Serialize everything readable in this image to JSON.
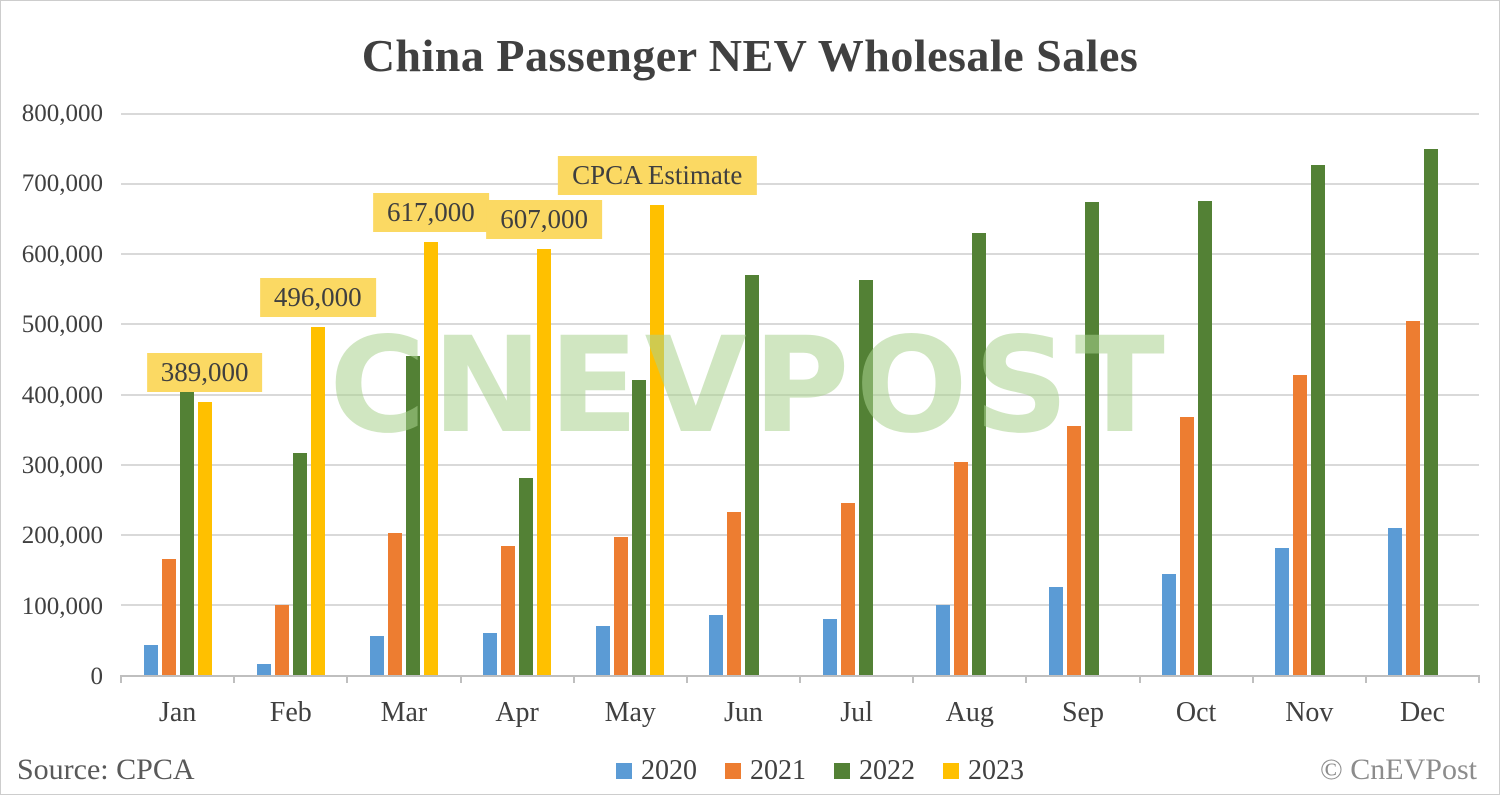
{
  "title": "China Passenger NEV Wholesale Sales",
  "source": "Source: CPCA",
  "copyright": "© CnEVPost",
  "watermark": "CNEVPOST",
  "colors": {
    "background": "#FFFFFF",
    "title_text": "#404040",
    "axis_text": "#404040",
    "gridline": "#D9D9D9",
    "axis_line": "#BFBFBF",
    "annotation_bg": "#FBD963",
    "annotation_text": "#3F3F3F",
    "watermark_color": "#A9D18E8C",
    "source_text": "#595959",
    "copyright_text": "#8C8C8C"
  },
  "chart_data": {
    "type": "bar",
    "title": "China Passenger NEV Wholesale Sales",
    "xlabel": "",
    "ylabel": "",
    "ylim": [
      0,
      800000
    ],
    "ytick_step": 100000,
    "grid": true,
    "legend_position": "bottom",
    "categories": [
      "Jan",
      "Feb",
      "Mar",
      "Apr",
      "May",
      "Jun",
      "Jul",
      "Aug",
      "Sep",
      "Oct",
      "Nov",
      "Dec"
    ],
    "series": [
      {
        "name": "2020",
        "color": "#5B9BD5",
        "values": [
          43000,
          15000,
          56000,
          60000,
          70000,
          85000,
          80000,
          100000,
          125000,
          144000,
          181000,
          210000
        ]
      },
      {
        "name": "2021",
        "color": "#ED7D31",
        "values": [
          165000,
          100000,
          202000,
          184000,
          197000,
          233000,
          246000,
          304000,
          355000,
          368000,
          428000,
          505000
        ]
      },
      {
        "name": "2022",
        "color": "#538135",
        "values": [
          405000,
          317000,
          455000,
          281000,
          421000,
          571000,
          564000,
          630000,
          675000,
          676000,
          728000,
          750000
        ]
      },
      {
        "name": "2023",
        "color": "#FFC000",
        "values": [
          389000,
          496000,
          617000,
          607000,
          670000,
          null,
          null,
          null,
          null,
          null,
          null,
          null
        ]
      }
    ],
    "annotations": [
      {
        "text": "389,000",
        "month": "Jan",
        "series": "2023"
      },
      {
        "text": "496,000",
        "month": "Feb",
        "series": "2023"
      },
      {
        "text": "617,000",
        "month": "Mar",
        "series": "2023"
      },
      {
        "text": "607,000",
        "month": "Apr",
        "series": "2023"
      },
      {
        "text": "CPCA Estimate",
        "month": "May",
        "series": "2023"
      }
    ]
  }
}
